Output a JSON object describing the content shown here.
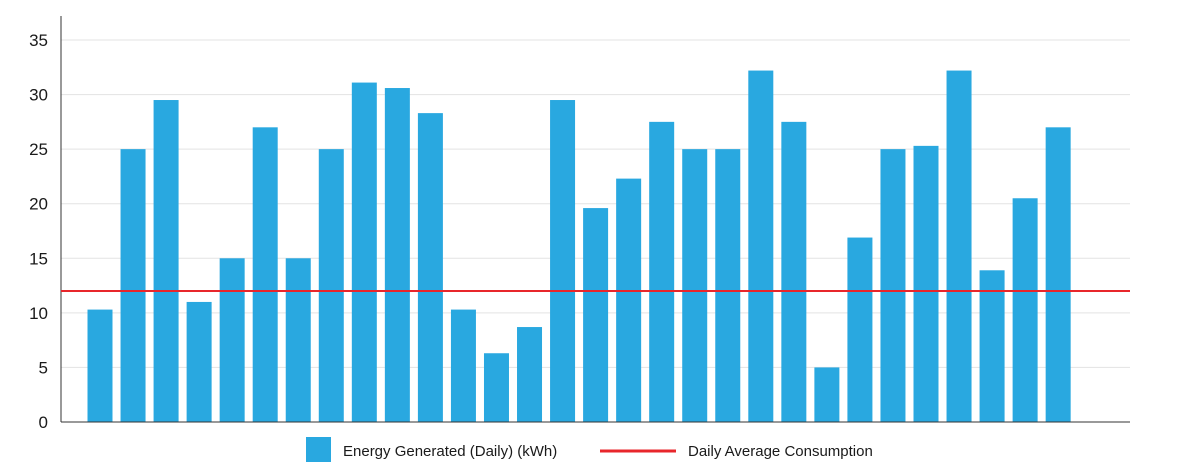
{
  "chart_data": {
    "type": "bar",
    "title": "",
    "xlabel": "",
    "ylabel": "",
    "ylim": [
      0,
      35
    ],
    "yticks": [
      0,
      5,
      10,
      15,
      20,
      25,
      30,
      35
    ],
    "grid": true,
    "legend_position": "bottom",
    "series": [
      {
        "name": "Energy Generated (Daily) (kWh)",
        "kind": "bar",
        "color": "#29a8e0",
        "values": [
          10.3,
          25.0,
          29.5,
          11.0,
          15.0,
          27.0,
          15.0,
          25.0,
          31.1,
          30.6,
          28.3,
          10.3,
          6.3,
          8.7,
          29.5,
          19.6,
          22.3,
          27.5,
          25.0,
          25.0,
          32.2,
          27.5,
          5.0,
          16.9,
          25.0,
          25.3,
          32.2,
          13.9,
          20.5,
          27.0
        ]
      },
      {
        "name": "Daily Average Consumption",
        "kind": "line",
        "color": "#e8262b",
        "value": 12.0
      }
    ]
  }
}
